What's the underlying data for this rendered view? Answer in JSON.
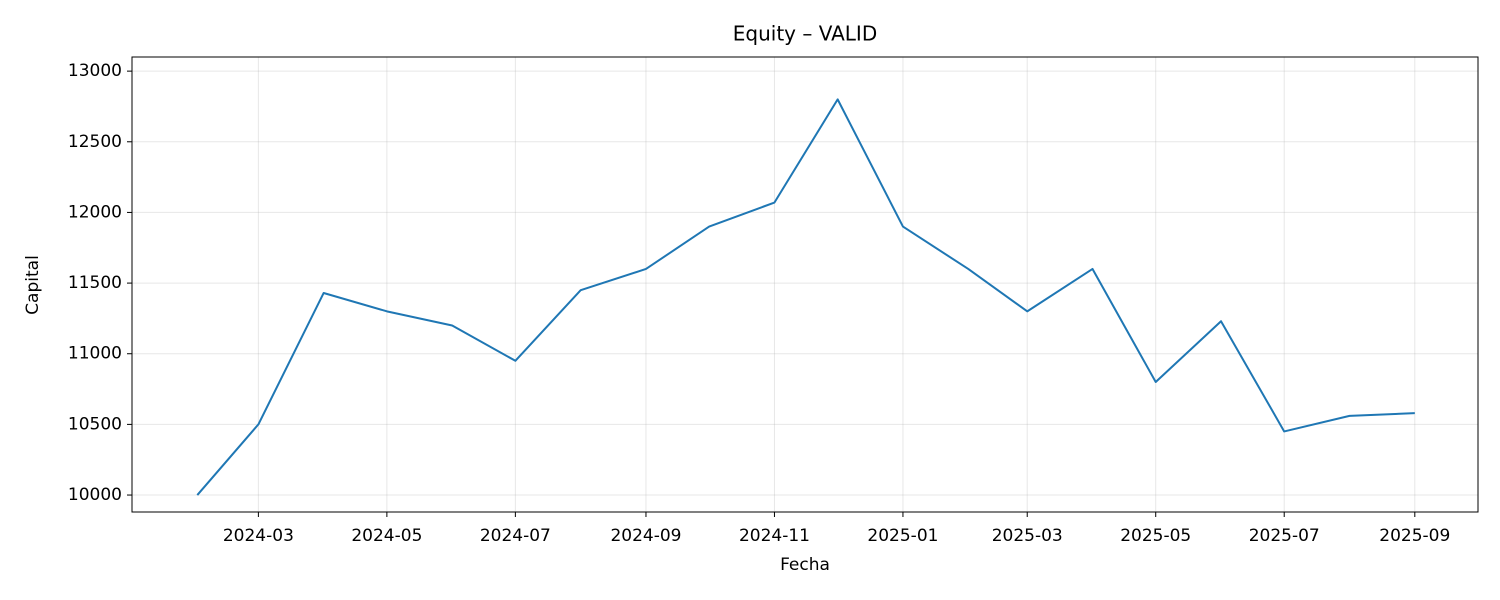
{
  "chart_data": {
    "type": "line",
    "title": "Equity – VALID",
    "x_label": "Fecha",
    "y_label": "Capital",
    "x": [
      "2024-02",
      "2024-03",
      "2024-04",
      "2024-05",
      "2024-06",
      "2024-07",
      "2024-08",
      "2024-09",
      "2024-10",
      "2024-11",
      "2024-12",
      "2025-01",
      "2025-02",
      "2025-03",
      "2025-04",
      "2025-05",
      "2025-06",
      "2025-07",
      "2025-08",
      "2025-09"
    ],
    "series": [
      {
        "name": "Capital",
        "color": "#1f77b4",
        "values": [
          10000,
          10500,
          11430,
          11300,
          11200,
          10950,
          11450,
          11600,
          11900,
          12070,
          12800,
          11900,
          11600,
          11300,
          11600,
          10800,
          11230,
          10450,
          10560,
          10580
        ]
      }
    ],
    "xlim": [
      "2024-01",
      "2025-10"
    ],
    "xticks": [
      "2024-03",
      "2024-05",
      "2024-07",
      "2024-09",
      "2024-11",
      "2025-01",
      "2025-03",
      "2025-05",
      "2025-07",
      "2025-09"
    ],
    "ylim": [
      9880,
      13100
    ],
    "yticks": [
      10000,
      10500,
      11000,
      11500,
      12000,
      12500,
      13000
    ],
    "grid": true
  }
}
